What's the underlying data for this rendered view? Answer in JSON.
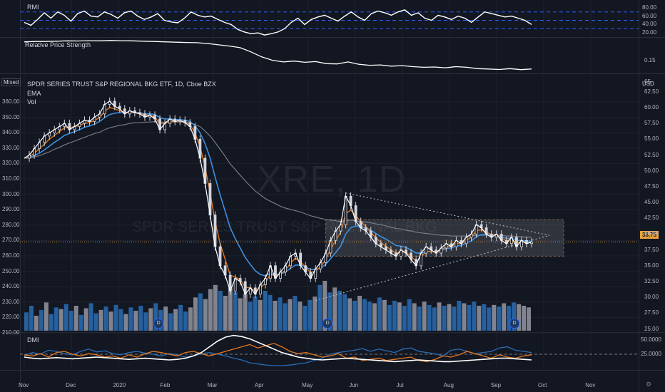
{
  "header": {
    "title": "SPDR SERIES TRUST S&P REGIONAL BKG ETF, 1D, Cboe BZX",
    "ema_label": "EMA",
    "vol_label": "Vol",
    "scale_mode": "Mixed",
    "currency": "USD",
    "corner": "⚙",
    "watermark_symbol": "XRE, 1D",
    "watermark_name": "SPDR SERIES TRUST S&P REGIONAL BKG"
  },
  "price_badge": "38.75",
  "dividend_marker": "D",
  "chart_data": [
    {
      "type": "line",
      "name": "RMI",
      "title": "RMI",
      "yaxis_ticks": [
        "80.00",
        "60.00",
        "40.00",
        "20.00"
      ],
      "ylim": [
        10,
        95
      ],
      "levels": [
        70,
        50,
        30
      ],
      "values": [
        45,
        38,
        52,
        68,
        55,
        70,
        62,
        48,
        66,
        72,
        60,
        58,
        70,
        64,
        55,
        68,
        72,
        60,
        52,
        58,
        66,
        50,
        46,
        44,
        55,
        70,
        62,
        58,
        60,
        52,
        45,
        40,
        28,
        22,
        18,
        20,
        15,
        18,
        22,
        30,
        45,
        55,
        40,
        52,
        58,
        62,
        55,
        48,
        60,
        70,
        58,
        50,
        66,
        72,
        68,
        62,
        70,
        75,
        62,
        68,
        55,
        50,
        62,
        58,
        52,
        60,
        55,
        45,
        58,
        70,
        66,
        62,
        58,
        60,
        55,
        50,
        40
      ]
    },
    {
      "type": "line",
      "name": "Relative Price Strength",
      "title": "Relative Price Strength",
      "yaxis_ticks": [
        "0.15"
      ],
      "values": [
        0.26,
        0.262,
        0.262,
        0.264,
        0.266,
        0.265,
        0.267,
        0.266,
        0.268,
        0.267,
        0.266,
        0.264,
        0.262,
        0.26,
        0.258,
        0.256,
        0.255,
        0.25,
        0.242,
        0.235,
        0.225,
        0.2,
        0.17,
        0.15,
        0.14,
        0.145,
        0.138,
        0.142,
        0.13,
        0.128,
        0.14,
        0.126,
        0.12,
        0.122,
        0.115,
        0.118,
        0.112,
        0.108,
        0.11,
        0.105,
        0.112,
        0.108,
        0.1,
        0.098,
        0.095,
        0.1,
        0.094,
        0.098
      ]
    },
    {
      "type": "candlestick",
      "title": "SPDR SERIES TRUST S&P REGIONAL BKG ETF, 1D, Cboe BZX",
      "left_axis_ticks": [
        "360.00",
        "350.00",
        "340.00",
        "330.00",
        "320.00",
        "310.00",
        "300.00",
        "290.00",
        "280.00",
        "270.00",
        "260.00",
        "250.00",
        "240.00",
        "230.00",
        "220.00",
        "210.00"
      ],
      "right_axis_ticks": [
        "62.50",
        "60.00",
        "57.50",
        "55.00",
        "52.50",
        "50.00",
        "47.50",
        "45.00",
        "42.50",
        "40.00",
        "37.50",
        "35.00",
        "32.50",
        "30.00",
        "27.50",
        "25.00"
      ],
      "right_top_label": "65",
      "ylim": [
        24.5,
        64.5
      ],
      "last_price": 38.75,
      "close_series": [
        52,
        52.5,
        53.5,
        54.5,
        55.5,
        56,
        56.5,
        57,
        57.5,
        56.5,
        57,
        57.5,
        58,
        57.8,
        58.5,
        59,
        60.5,
        61,
        60.2,
        59.8,
        59,
        59.5,
        59.2,
        59,
        58.5,
        58.8,
        58.2,
        56.5,
        57.5,
        58.2,
        57.8,
        58,
        57.6,
        57,
        55,
        52,
        48,
        43,
        38,
        35,
        33.5,
        31,
        33,
        32.5,
        30.5,
        31.5,
        30.5,
        32,
        33,
        35,
        33,
        34,
        35,
        36.5,
        37,
        35,
        34,
        33,
        34.5,
        35.5,
        37,
        39,
        40.5,
        41.5,
        46,
        44.5,
        42,
        41,
        40.5,
        39.5,
        38.5,
        38,
        37.5,
        37,
        36.5,
        37.5,
        37,
        36,
        35,
        37,
        38,
        37.5,
        37,
        37.8,
        38.5,
        38,
        39,
        38.5,
        39.5,
        40,
        41.5,
        41,
        40,
        39.5,
        40,
        39,
        38.5,
        39.5,
        38,
        39,
        38.5,
        38.75
      ],
      "ema_fast": [
        52,
        52.2,
        52.8,
        53.5,
        54.2,
        55,
        55.6,
        56.2,
        56.8,
        56.8,
        57,
        57.2,
        57.5,
        57.6,
        58,
        58.4,
        59.4,
        60,
        59.8,
        59.5,
        59.2,
        59.3,
        59.2,
        59.1,
        58.8,
        58.8,
        58.5,
        57.5,
        57.5,
        57.8,
        57.8,
        57.9,
        57.7,
        57.3,
        56,
        53.8,
        50.6,
        46.5,
        42,
        38.5,
        36,
        33.5,
        33.2,
        32.8,
        31.6,
        31.5,
        31,
        31.5,
        32.3,
        33.7,
        33.3,
        33.7,
        34.3,
        35.4,
        36.2,
        35.6,
        34.8,
        33.9,
        34.2,
        34.8,
        36,
        37.6,
        39,
        40.3,
        43.2,
        43.8,
        42.9,
        42,
        41.2,
        40.3,
        39.4,
        38.7,
        38.1,
        37.5,
        37,
        37.2,
        37.1,
        36.5,
        35.7,
        36.4,
        37.2,
        37.3,
        37.1,
        37.5,
        38,
        38,
        38.5,
        38.5,
        39,
        39.5,
        40.5,
        40.7,
        40.3,
        39.9,
        39.9,
        39.4,
        38.9,
        39.2,
        38.6,
        38.8,
        38.6,
        38.7
      ],
      "ema_mid": [
        52,
        52.1,
        52.4,
        52.8,
        53.3,
        53.9,
        54.5,
        55,
        55.6,
        55.9,
        56.2,
        56.5,
        56.9,
        57.1,
        57.4,
        57.8,
        58.4,
        58.9,
        59.1,
        59.2,
        59.2,
        59.2,
        59.2,
        59.2,
        59,
        59,
        58.9,
        58.4,
        58.2,
        58.2,
        58.1,
        58.1,
        58,
        57.8,
        57.1,
        56,
        54.3,
        52,
        49,
        46.2,
        43.6,
        41,
        39.3,
        37.8,
        36.3,
        35.2,
        34.2,
        33.6,
        33.4,
        33.8,
        33.6,
        33.7,
        34,
        34.6,
        35.1,
        35.1,
        34.8,
        34.4,
        34.4,
        34.6,
        35.2,
        36.1,
        37.1,
        38.1,
        40,
        41,
        41.3,
        41.2,
        41,
        40.6,
        40.1,
        39.6,
        39.2,
        38.7,
        38.2,
        38.1,
        37.9,
        37.5,
        37,
        37,
        37.2,
        37.3,
        37.2,
        37.4,
        37.7,
        37.8,
        38.1,
        38.2,
        38.6,
        38.9,
        39.6,
        39.9,
        39.9,
        39.8,
        39.8,
        39.6,
        39.3,
        39.4,
        39,
        39,
        38.9,
        38.8
      ],
      "ema_slow": [
        52,
        52,
        52.2,
        52.4,
        52.7,
        53,
        53.4,
        53.7,
        54.1,
        54.4,
        54.7,
        55,
        55.3,
        55.6,
        55.9,
        56.1,
        56.5,
        56.8,
        57,
        57.2,
        57.3,
        57.5,
        57.6,
        57.6,
        57.7,
        57.7,
        57.8,
        57.7,
        57.7,
        57.7,
        57.7,
        57.7,
        57.7,
        57.6,
        57.3,
        57,
        56.3,
        55.5,
        54.5,
        53.4,
        52.3,
        51.1,
        50.2,
        49.3,
        48.4,
        47.6,
        46.8,
        46.2,
        45.6,
        45.2,
        44.8,
        44.4,
        44.1,
        43.9,
        43.7,
        43.5,
        43.2,
        42.9,
        42.7,
        42.5,
        42.3,
        42.2,
        42.1,
        42,
        42.1,
        42.2,
        42.1,
        42,
        41.9,
        41.8,
        41.6,
        41.5,
        41.3,
        41.1,
        40.9,
        40.8,
        40.6,
        40.5,
        40.3,
        40.2,
        40.1,
        40,
        39.9,
        39.8,
        39.8,
        39.7,
        39.7,
        39.7,
        39.7,
        39.7,
        39.8,
        39.8,
        39.8,
        39.8,
        39.8,
        39.8,
        39.7,
        39.7,
        39.6,
        39.6,
        39.5,
        39.5
      ],
      "range_box": {
        "top": 42.3,
        "bottom": 36.5
      },
      "triangle_upper": [
        {
          "i": 64,
          "v": 46.5
        },
        {
          "i": 100,
          "v": 39.8
        }
      ],
      "triangle_lower": [
        {
          "i": 58,
          "v": 29.5
        },
        {
          "i": 100,
          "v": 39.8
        }
      ],
      "volume": [
        22,
        30,
        18,
        25,
        34,
        20,
        28,
        26,
        32,
        24,
        30,
        19,
        27,
        33,
        21,
        25,
        29,
        23,
        31,
        26,
        20,
        28,
        24,
        30,
        22,
        27,
        33,
        25,
        29,
        21,
        26,
        31,
        23,
        28,
        40,
        45,
        38,
        50,
        55,
        48,
        42,
        52,
        46,
        39,
        44,
        35,
        41,
        37,
        48,
        43,
        36,
        40,
        33,
        38,
        42,
        35,
        30,
        37,
        41,
        55,
        60,
        46,
        52,
        48,
        44,
        39,
        36,
        42,
        38,
        35,
        33,
        40,
        37,
        31,
        36,
        34,
        30,
        38,
        33,
        29,
        35,
        31,
        28,
        34,
        30,
        32,
        29,
        36,
        33,
        31,
        35,
        30,
        32,
        28,
        31,
        29,
        33,
        30,
        34,
        32,
        30,
        28
      ],
      "volume_color_flags": [
        1,
        1,
        0,
        1,
        0,
        1,
        1,
        0,
        1,
        1,
        0,
        1,
        0,
        1,
        1,
        0,
        1,
        0,
        1,
        1,
        0,
        1,
        0,
        1,
        1,
        0,
        1,
        1,
        0,
        1,
        0,
        1,
        1,
        0,
        0,
        1,
        0,
        0,
        0,
        1,
        0,
        0,
        1,
        0,
        0,
        1,
        1,
        0,
        1,
        1,
        0,
        1,
        1,
        0,
        1,
        0,
        1,
        1,
        0,
        1,
        0,
        1,
        0,
        1,
        1,
        0,
        1,
        0,
        1,
        1,
        0,
        1,
        0,
        1,
        1,
        0,
        1,
        1,
        0,
        1,
        0,
        1,
        1,
        0,
        1,
        0,
        1,
        1,
        0,
        1,
        1,
        0,
        1,
        1,
        0,
        1,
        0,
        1,
        1,
        0,
        0,
        0
      ],
      "dividend_positions": [
        15,
        34,
        55
      ]
    },
    {
      "type": "line",
      "name": "DMI",
      "title": "DMI",
      "yaxis_ticks": [
        "50.0000",
        "25.0000"
      ],
      "ylim": [
        0,
        60
      ],
      "plus_di": [
        22,
        28,
        25,
        32,
        30,
        26,
        24,
        30,
        34,
        29,
        31,
        26,
        24,
        28,
        30,
        27,
        25,
        22,
        26,
        24,
        20,
        22,
        26,
        28,
        25,
        22,
        18,
        15,
        10,
        8,
        6,
        5,
        5,
        6,
        8,
        10,
        14,
        18,
        25,
        28,
        30,
        32,
        35,
        30,
        34,
        31,
        28,
        34,
        36,
        30,
        28,
        26,
        22,
        32,
        34,
        30,
        26,
        28,
        30,
        36,
        38,
        32,
        30,
        28
      ],
      "minus_di": [
        24,
        22,
        26,
        20,
        28,
        30,
        25,
        22,
        26,
        24,
        20,
        22,
        18,
        24,
        20,
        26,
        30,
        28,
        25,
        22,
        28,
        30,
        26,
        22,
        26,
        30,
        34,
        38,
        42,
        36,
        40,
        44,
        38,
        30,
        26,
        28,
        24,
        20,
        22,
        26,
        18,
        20,
        14,
        16,
        18,
        14,
        16,
        18,
        20,
        14,
        12,
        16,
        22,
        20,
        24,
        30,
        26,
        22,
        18,
        24,
        20,
        18,
        22,
        24
      ],
      "adx": [
        20,
        18,
        17,
        18,
        19,
        18,
        17,
        18,
        19,
        20,
        19,
        18,
        17,
        16,
        17,
        18,
        17,
        16,
        15,
        16,
        18,
        22,
        28,
        38,
        48,
        55,
        58,
        56,
        52,
        46,
        40,
        34,
        28,
        24,
        20,
        18,
        16,
        15,
        16,
        17,
        18,
        17,
        16,
        15,
        14,
        13,
        12,
        13,
        14,
        15,
        14,
        13,
        12,
        12,
        13,
        14,
        15,
        16,
        17,
        18,
        18,
        17,
        16,
        15
      ],
      "level": 25
    }
  ],
  "x_axis": {
    "labels": [
      "Nov",
      "Dec",
      "2020",
      "Feb",
      "Mar",
      "Apr",
      "May",
      "Jun",
      "Jul",
      "Aug",
      "Sep",
      "Oct",
      "Nov"
    ],
    "bar_index": [
      0,
      23,
      44,
      64,
      86,
      108,
      130,
      152,
      174,
      196,
      218,
      240,
      262
    ]
  },
  "colors": {
    "background": "#131722",
    "grid": "#1e222d",
    "up_vol": "#2a6db5",
    "down_vol": "#9598a1",
    "white_line": "#ffffff",
    "orange_ema": "#e2771d",
    "blue_ema": "#3d8fe0",
    "gray_ema": "#787b86",
    "level_line": "#2962ff",
    "price_line": "#e9a23b"
  }
}
